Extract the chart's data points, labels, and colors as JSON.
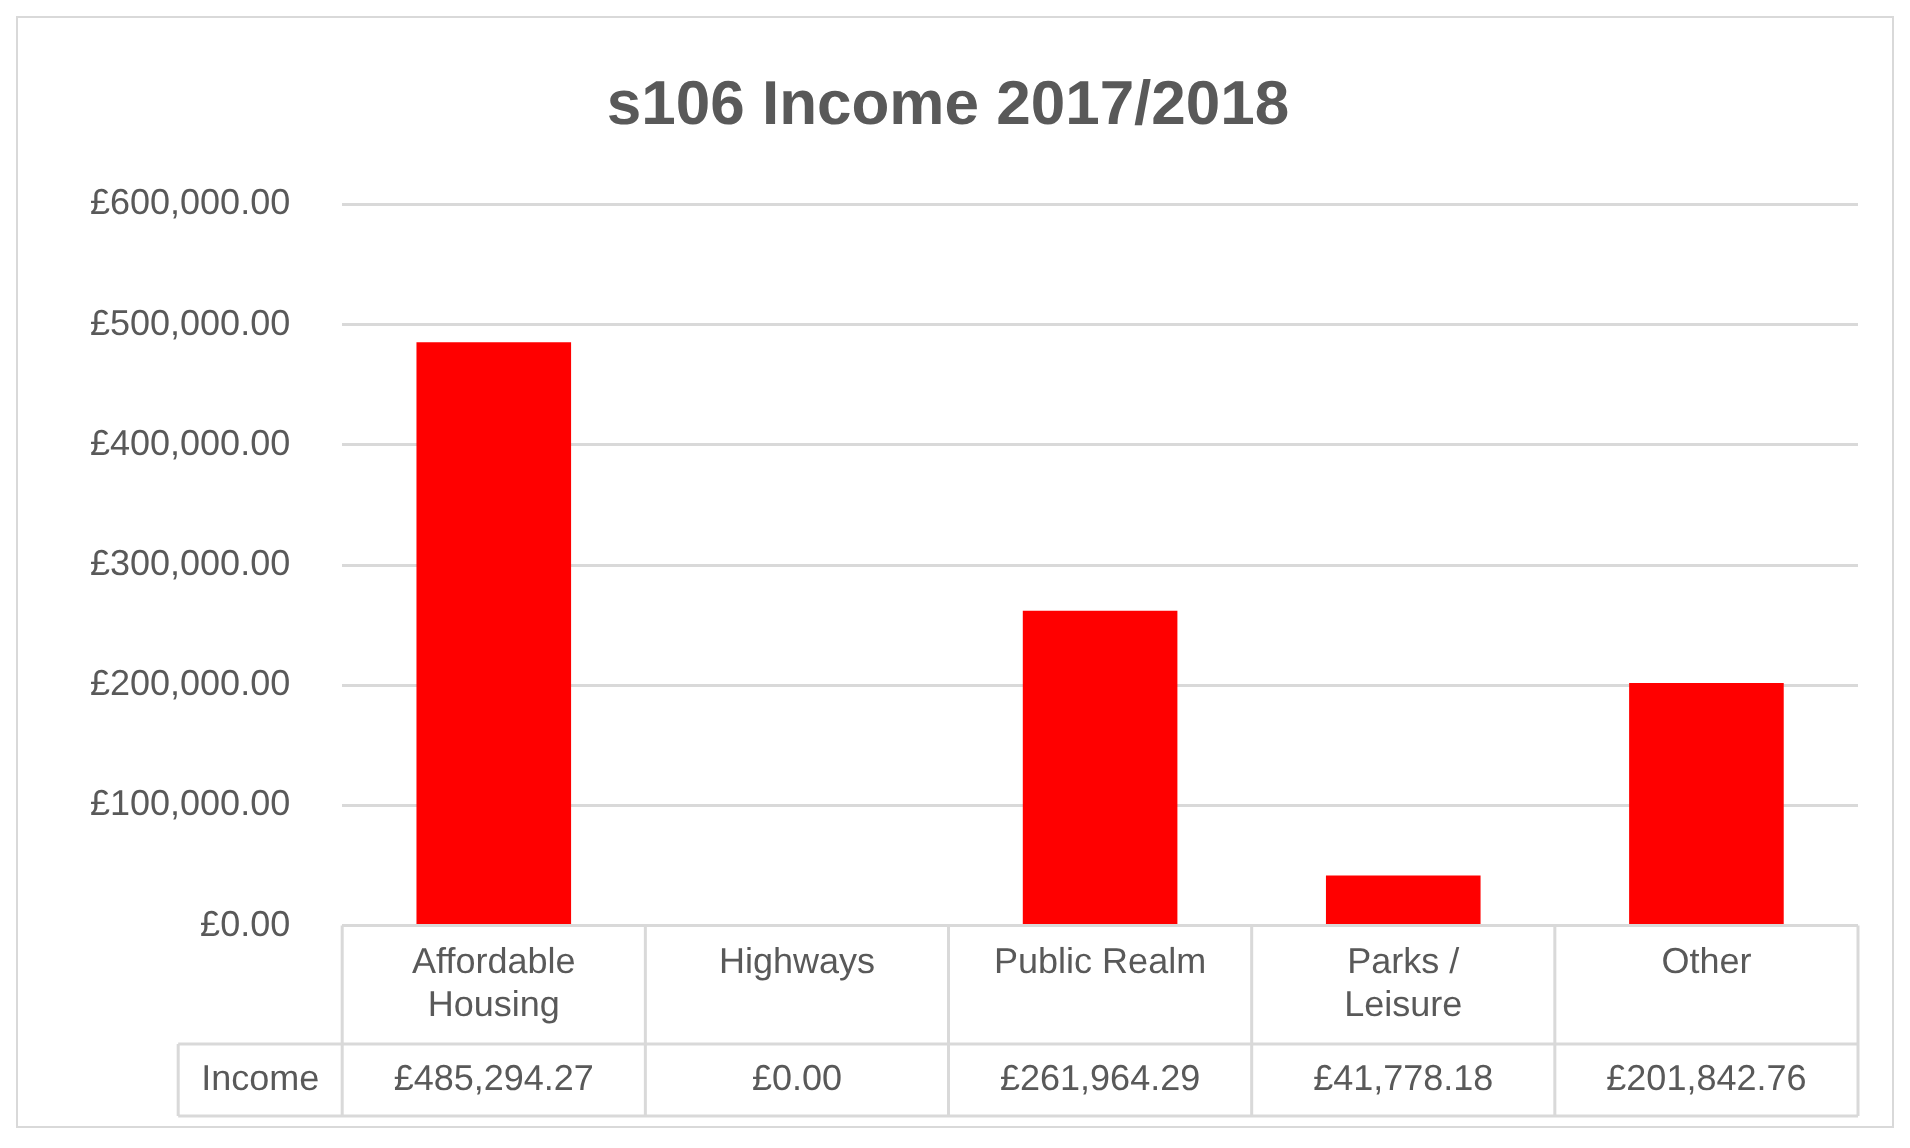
{
  "chart_data": {
    "type": "bar",
    "title": "s106 Income 2017/2018",
    "categories": [
      "Affordable Housing",
      "Highways",
      "Public Realm",
      "Parks / Leisure",
      "Other"
    ],
    "series": [
      {
        "name": "Income",
        "color": "#ff0000",
        "values": [
          485294.27,
          0,
          261964.29,
          41778.18,
          201842.76
        ],
        "value_labels": [
          "£485,294.27",
          "£0.00",
          "£261,964.29",
          "£41,778.18",
          "£201,842.76"
        ]
      }
    ],
    "ylim": [
      0,
      600000
    ],
    "yticks": [
      {
        "value": 0,
        "label": "£0.00"
      },
      {
        "value": 100000,
        "label": "£100,000.00"
      },
      {
        "value": 200000,
        "label": "£200,000.00"
      },
      {
        "value": 300000,
        "label": "£300,000.00"
      },
      {
        "value": 400000,
        "label": "£400,000.00"
      },
      {
        "value": 500000,
        "label": "£500,000.00"
      },
      {
        "value": 600000,
        "label": "£600,000.00"
      }
    ],
    "grid": "y",
    "legend": false
  }
}
